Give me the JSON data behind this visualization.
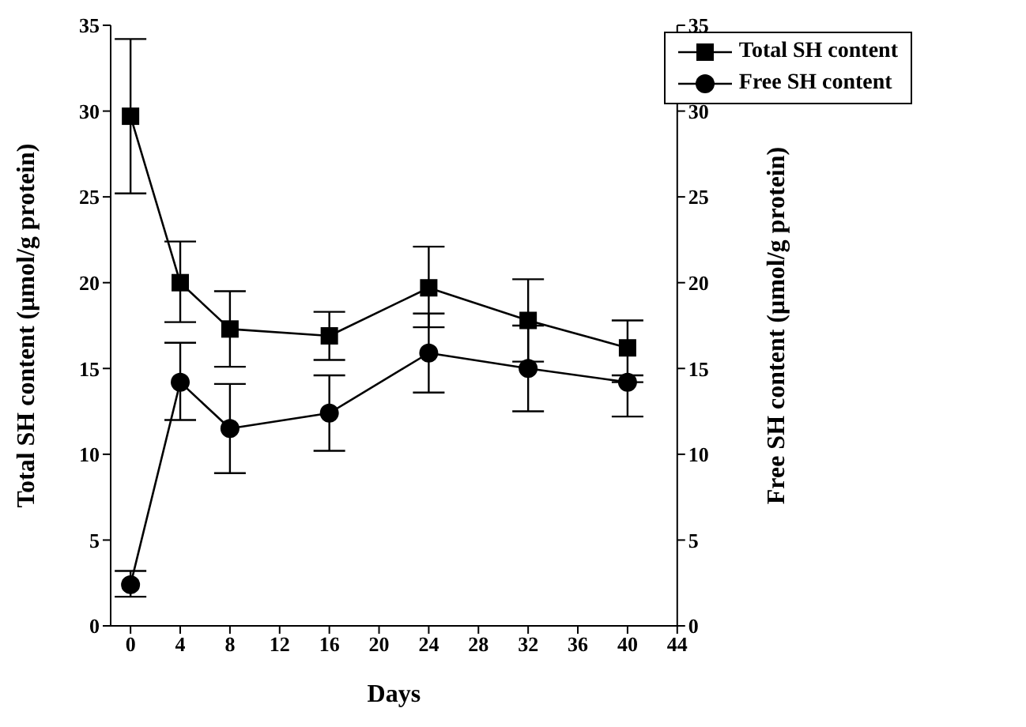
{
  "chart_data": {
    "type": "line",
    "xlabel": "Days",
    "ylabel": "Total SH content (μmol/g protein)",
    "y2label": "Free SH content (μmol/g protein)",
    "x": [
      0,
      4,
      8,
      16,
      24,
      32,
      40
    ],
    "series": [
      {
        "name": "Total SH content",
        "color": "#000000",
        "marker": "square",
        "values": [
          29.7,
          20.0,
          17.3,
          16.9,
          19.7,
          17.8,
          16.2
        ],
        "errors": [
          [
            25.2,
            34.2
          ],
          [
            17.7,
            22.4
          ],
          [
            15.1,
            19.5
          ],
          [
            15.5,
            18.3
          ],
          [
            17.4,
            22.1
          ],
          [
            15.4,
            20.2
          ],
          [
            14.6,
            17.8
          ]
        ]
      },
      {
        "name": "Free SH content",
        "color": "#000000",
        "marker": "circle",
        "axis": "y2",
        "values": [
          2.4,
          14.2,
          11.5,
          12.4,
          15.9,
          15.0,
          14.2
        ],
        "errors": [
          [
            1.7,
            3.2
          ],
          [
            12.0,
            16.5
          ],
          [
            8.9,
            14.1
          ],
          [
            10.2,
            14.6
          ],
          [
            13.6,
            18.2
          ],
          [
            12.5,
            17.5
          ],
          [
            12.2,
            14.2
          ]
        ]
      }
    ],
    "xlim": [
      -1.6,
      44
    ],
    "xticks": [
      0,
      4,
      8,
      12,
      16,
      20,
      24,
      28,
      32,
      36,
      40,
      44
    ],
    "ylim": [
      0,
      35
    ],
    "yticks": [
      0,
      5,
      10,
      15,
      20,
      25,
      30,
      35
    ],
    "y2lim": [
      0,
      35
    ],
    "y2ticks": [
      0,
      5,
      10,
      15,
      20,
      25,
      30,
      35
    ],
    "grid": false,
    "legend": "top right",
    "line_style": "solid"
  }
}
